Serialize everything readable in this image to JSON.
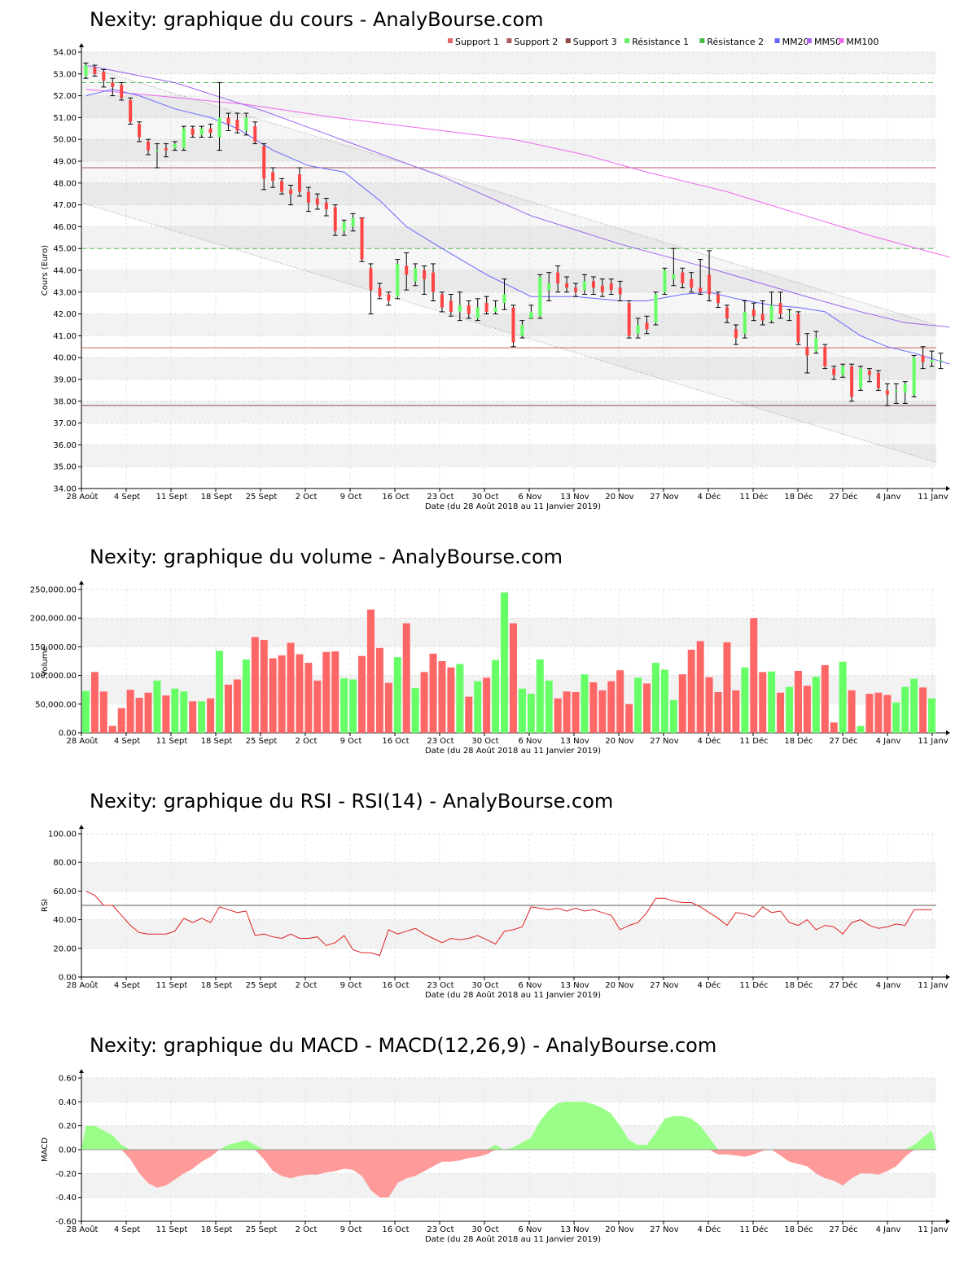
{
  "x_axis": {
    "tick_labels": [
      "28 Août",
      "4 Sept",
      "11 Sept",
      "18 Sept",
      "25 Sept",
      "2 Oct",
      "9 Oct",
      "16 Oct",
      "23 Oct",
      "30 Oct",
      "6 Nov",
      "13 Nov",
      "20 Nov",
      "27 Nov",
      "4 Déc",
      "11 Déc",
      "18 Déc",
      "27 Déc",
      "4 Janv",
      "11 Janv"
    ],
    "title": "Date (du 28 Août 2018 au 11 Janvier 2019)"
  },
  "colors": {
    "up": "#66ff66",
    "down": "#ff4444",
    "down_bar": "#ff6666",
    "grid_band": "#f2f2f2"
  },
  "chart_data": [
    {
      "type": "candlestick",
      "title": "Nexity: graphique du cours - AnalyBourse.com",
      "ylabel": "Cours (Euro)",
      "ylim": [
        34,
        54
      ],
      "ytick_labels": [
        "34.00",
        "35.00",
        "36.00",
        "37.00",
        "38.00",
        "39.00",
        "40.00",
        "41.00",
        "42.00",
        "43.00",
        "44.00",
        "45.00",
        "46.00",
        "47.00",
        "48.00",
        "49.00",
        "50.00",
        "51.00",
        "52.00",
        "53.00",
        "54.00"
      ],
      "legend": [
        {
          "label": "Support 1",
          "color": "#e06666"
        },
        {
          "label": "Support 2",
          "color": "#b05a5a"
        },
        {
          "label": "Support 3",
          "color": "#8a4a4a"
        },
        {
          "label": "Résistance 1",
          "color": "#66ee66"
        },
        {
          "label": "Résistance 2",
          "color": "#44bb44"
        },
        {
          "label": "MM20",
          "color": "#6666ff"
        },
        {
          "label": "MM50",
          "color": "#aa66ee"
        },
        {
          "label": "MM100",
          "color": "#ee66ee"
        }
      ],
      "levels": {
        "support_1": 40.45,
        "support_2": 48.7,
        "support_3": 37.8,
        "resistance_1": 45.0,
        "resistance_2": 52.6
      },
      "channel": {
        "upper": [
          53.4,
          41.5
        ],
        "lower": [
          47.1,
          35.2
        ]
      },
      "candles": [
        [
          52.9,
          53.4,
          53.5,
          52.8
        ],
        [
          53.3,
          53.0,
          53.4,
          52.9
        ],
        [
          53.1,
          52.7,
          53.2,
          52.4
        ],
        [
          52.6,
          52.4,
          52.8,
          52.0
        ],
        [
          52.5,
          51.9,
          52.6,
          51.8
        ],
        [
          51.8,
          50.8,
          51.9,
          50.7
        ],
        [
          50.7,
          50.1,
          50.8,
          49.9
        ],
        [
          49.9,
          49.5,
          50.0,
          49.3
        ],
        [
          49.5,
          49.5,
          49.8,
          48.7
        ],
        [
          49.6,
          49.5,
          49.8,
          49.2
        ],
        [
          49.6,
          49.8,
          49.9,
          49.5
        ],
        [
          49.6,
          50.5,
          50.6,
          49.5
        ],
        [
          50.5,
          50.2,
          50.6,
          50.1
        ],
        [
          50.2,
          50.5,
          50.6,
          50.1
        ],
        [
          50.5,
          50.3,
          50.7,
          50.1
        ],
        [
          50.1,
          51.0,
          52.6,
          49.5
        ],
        [
          51.0,
          50.7,
          51.2,
          50.4
        ],
        [
          50.9,
          50.4,
          51.2,
          50.3
        ],
        [
          50.4,
          51.0,
          51.2,
          50.2
        ],
        [
          50.6,
          49.9,
          50.8,
          49.8
        ],
        [
          49.7,
          48.2,
          49.8,
          47.7
        ],
        [
          48.5,
          48.1,
          48.7,
          47.8
        ],
        [
          48.1,
          47.6,
          48.2,
          47.5
        ],
        [
          47.7,
          47.5,
          47.9,
          47.0
        ],
        [
          48.4,
          47.6,
          48.7,
          47.4
        ],
        [
          47.6,
          47.1,
          47.8,
          46.7
        ],
        [
          47.3,
          47.0,
          47.5,
          46.8
        ],
        [
          47.1,
          46.8,
          47.3,
          46.5
        ],
        [
          46.9,
          45.8,
          47.0,
          45.6
        ],
        [
          45.8,
          46.2,
          46.3,
          45.6
        ],
        [
          46.0,
          46.4,
          46.6,
          45.8
        ],
        [
          46.4,
          44.5,
          46.4,
          44.4
        ],
        [
          44.1,
          43.1,
          44.3,
          42.0
        ],
        [
          43.2,
          42.8,
          43.4,
          42.7
        ],
        [
          42.9,
          42.6,
          43.0,
          42.4
        ],
        [
          42.8,
          44.3,
          44.5,
          42.7
        ],
        [
          44.2,
          43.8,
          44.8,
          43.1
        ],
        [
          43.5,
          44.1,
          44.3,
          43.3
        ],
        [
          44.0,
          43.6,
          44.2,
          42.9
        ],
        [
          43.9,
          43.0,
          44.3,
          42.6
        ],
        [
          42.9,
          42.3,
          43.0,
          42.1
        ],
        [
          42.6,
          42.1,
          42.9,
          41.9
        ],
        [
          42.1,
          42.4,
          43.0,
          41.7
        ],
        [
          42.4,
          42.0,
          42.6,
          41.8
        ],
        [
          41.8,
          42.3,
          42.7,
          41.7
        ],
        [
          42.5,
          42.1,
          42.8,
          42.0
        ],
        [
          42.1,
          42.3,
          42.6,
          42.0
        ],
        [
          42.5,
          42.9,
          43.6,
          42.2
        ],
        [
          42.3,
          40.7,
          42.4,
          40.5
        ],
        [
          41.0,
          41.5,
          41.7,
          40.9
        ],
        [
          41.8,
          42.1,
          42.4,
          41.8
        ],
        [
          41.9,
          43.7,
          43.8,
          41.8
        ],
        [
          43.1,
          43.4,
          43.9,
          42.6
        ],
        [
          43.9,
          43.4,
          44.2,
          43.0
        ],
        [
          43.4,
          43.2,
          43.7,
          43.0
        ],
        [
          43.2,
          43.0,
          43.4,
          42.8
        ],
        [
          43.1,
          43.5,
          43.8,
          42.9
        ],
        [
          43.5,
          43.2,
          43.7,
          42.9
        ],
        [
          43.3,
          43.0,
          43.6,
          42.8
        ],
        [
          43.4,
          43.1,
          43.6,
          42.9
        ],
        [
          43.2,
          42.9,
          43.5,
          42.6
        ],
        [
          42.5,
          41.0,
          42.6,
          40.9
        ],
        [
          41.1,
          41.5,
          41.8,
          40.9
        ],
        [
          41.6,
          41.3,
          41.9,
          41.1
        ],
        [
          41.6,
          42.9,
          43.0,
          41.5
        ],
        [
          43.0,
          44.0,
          44.1,
          42.9
        ],
        [
          43.6,
          43.8,
          45.0,
          43.3
        ],
        [
          43.9,
          43.4,
          44.1,
          43.2
        ],
        [
          43.6,
          43.2,
          43.9,
          43.0
        ],
        [
          43.2,
          43.0,
          44.5,
          42.9
        ],
        [
          43.8,
          42.9,
          44.9,
          42.6
        ],
        [
          42.9,
          42.5,
          43.0,
          42.3
        ],
        [
          42.3,
          41.8,
          42.4,
          41.6
        ],
        [
          41.3,
          40.9,
          41.5,
          40.6
        ],
        [
          41.1,
          42.1,
          42.6,
          40.9
        ],
        [
          42.2,
          41.9,
          42.5,
          41.7
        ],
        [
          42.0,
          41.7,
          42.6,
          41.5
        ],
        [
          41.7,
          42.4,
          43.0,
          41.6
        ],
        [
          42.5,
          42.0,
          43.0,
          41.8
        ],
        [
          42.0,
          42.0,
          42.2,
          41.7
        ],
        [
          42.0,
          40.7,
          42.1,
          40.6
        ],
        [
          40.5,
          40.1,
          41.1,
          39.3
        ],
        [
          40.3,
          40.9,
          41.2,
          40.2
        ],
        [
          40.5,
          39.6,
          40.6,
          39.5
        ],
        [
          39.5,
          39.2,
          39.6,
          39.0
        ],
        [
          39.2,
          39.6,
          39.7,
          39.1
        ],
        [
          39.6,
          38.2,
          39.7,
          38.0
        ],
        [
          38.6,
          39.5,
          39.6,
          38.5
        ],
        [
          39.4,
          39.2,
          39.5,
          38.9
        ],
        [
          39.3,
          38.6,
          39.4,
          38.5
        ],
        [
          38.5,
          38.3,
          38.8,
          37.8
        ],
        [
          38.5,
          38.5,
          38.8,
          37.9
        ],
        [
          38.4,
          38.8,
          38.9,
          37.9
        ],
        [
          38.3,
          40.0,
          40.1,
          38.2
        ],
        [
          40.1,
          39.8,
          40.5,
          39.5
        ],
        [
          39.8,
          39.9,
          40.3,
          39.6
        ],
        [
          39.9,
          39.9,
          40.2,
          39.5
        ]
      ],
      "mm20": [
        [
          0,
          52.0
        ],
        [
          3,
          52.3
        ],
        [
          6,
          52.0
        ],
        [
          10,
          51.4
        ],
        [
          14,
          51.0
        ],
        [
          17,
          50.5
        ],
        [
          21,
          49.5
        ],
        [
          25,
          48.8
        ],
        [
          29,
          48.5
        ],
        [
          33,
          47.2
        ],
        [
          36,
          46.0
        ],
        [
          40,
          45.0
        ],
        [
          45,
          43.8
        ],
        [
          50,
          42.8
        ],
        [
          55,
          42.8
        ],
        [
          60,
          42.6
        ],
        [
          63,
          42.6
        ],
        [
          67,
          42.9
        ],
        [
          70,
          43.0
        ],
        [
          73,
          42.7
        ],
        [
          77,
          42.4
        ],
        [
          80,
          42.3
        ],
        [
          83,
          42.1
        ],
        [
          87,
          41.0
        ],
        [
          90,
          40.5
        ],
        [
          93,
          40.2
        ],
        [
          97,
          39.7
        ]
      ],
      "mm50": [
        [
          0,
          53.4
        ],
        [
          10,
          52.6
        ],
        [
          20,
          51.3
        ],
        [
          30,
          49.8
        ],
        [
          40,
          48.3
        ],
        [
          50,
          46.5
        ],
        [
          60,
          45.2
        ],
        [
          70,
          44.1
        ],
        [
          80,
          42.9
        ],
        [
          87,
          42.1
        ],
        [
          92,
          41.6
        ],
        [
          97,
          41.4
        ]
      ],
      "mm100": [
        [
          0,
          52.3
        ],
        [
          8,
          52.0
        ],
        [
          18,
          51.6
        ],
        [
          28,
          51.0
        ],
        [
          38,
          50.5
        ],
        [
          48,
          50.0
        ],
        [
          56,
          49.3
        ],
        [
          63,
          48.5
        ],
        [
          72,
          47.6
        ],
        [
          80,
          46.6
        ],
        [
          88,
          45.6
        ],
        [
          97,
          44.6
        ]
      ]
    },
    {
      "type": "bar",
      "title": "Nexity: graphique du volume - AnalyBourse.com",
      "ylabel": "Volume",
      "ylim": [
        0,
        250000
      ],
      "ytick_labels": [
        "0.00",
        "50,000.00",
        "100,000.00",
        "150,000.00",
        "200,000.00",
        "250,000.00"
      ],
      "values": [
        73000,
        106000,
        72000,
        12000,
        43000,
        75000,
        61000,
        70000,
        91000,
        65000,
        77000,
        72000,
        55000,
        55000,
        60000,
        143000,
        84000,
        93000,
        128000,
        167000,
        162000,
        130000,
        135000,
        157000,
        137000,
        122000,
        91000,
        141000,
        142000,
        95000,
        93000,
        134000,
        215000,
        148000,
        87000,
        132000,
        191000,
        78000,
        106000,
        138000,
        125000,
        114000,
        120000,
        63000,
        90000,
        96000,
        127000,
        245000,
        191000,
        77000,
        68000,
        128000,
        91000,
        60000,
        72000,
        71000,
        102000,
        88000,
        74000,
        90000,
        109000,
        50000,
        96000,
        86000,
        122000,
        110000,
        57000,
        102000,
        145000,
        160000,
        97000,
        71000,
        158000,
        74000,
        114000,
        200000,
        106000,
        107000,
        70000,
        80000,
        108000,
        82000,
        98000,
        118000,
        18000,
        124000,
        74000,
        12000,
        68000,
        70000,
        66000,
        53000,
        80000,
        94000,
        79000,
        60000
      ]
    },
    {
      "type": "line",
      "title": "Nexity: graphique du RSI - RSI(14) - AnalyBourse.com",
      "ylabel": "RSI",
      "ylim": [
        0,
        100
      ],
      "ytick_labels": [
        "0.00",
        "20.00",
        "40.00",
        "60.00",
        "80.00",
        "100.00"
      ],
      "reference_line": 50,
      "values": [
        60,
        57,
        50,
        50,
        43,
        36,
        31,
        30,
        30,
        30,
        32,
        41,
        38,
        41,
        38,
        49,
        47,
        45,
        46,
        29,
        30,
        28,
        27,
        30,
        27,
        27,
        28,
        22,
        24,
        29,
        19,
        17,
        17,
        15,
        33,
        30,
        32,
        34,
        30,
        27,
        24,
        27,
        26,
        27,
        29,
        26,
        23,
        32,
        33,
        35,
        49,
        48,
        47,
        48,
        46,
        48,
        46,
        47,
        45,
        43,
        33,
        36,
        38,
        45,
        55,
        55,
        53,
        52,
        52,
        49,
        45,
        41,
        36,
        45,
        44,
        42,
        49,
        45,
        46,
        38,
        36,
        40,
        33,
        36,
        35,
        30,
        38,
        40,
        36,
        34,
        35,
        37,
        36,
        47,
        47,
        47
      ]
    },
    {
      "type": "area",
      "title": "Nexity: graphique du MACD - MACD(12,26,9) - AnalyBourse.com",
      "ylabel": "MACD",
      "ylim": [
        -0.6,
        0.6
      ],
      "ytick_labels": [
        "-0.60",
        "-0.40",
        "-0.20",
        "0.00",
        "0.20",
        "0.40",
        "0.60"
      ],
      "values": [
        0.2,
        0.2,
        0.16,
        0.12,
        0.04,
        -0.08,
        -0.2,
        -0.28,
        -0.32,
        -0.3,
        -0.25,
        -0.2,
        -0.16,
        -0.1,
        -0.06,
        0.0,
        0.04,
        0.06,
        0.08,
        0.04,
        -0.08,
        -0.18,
        -0.22,
        -0.24,
        -0.22,
        -0.21,
        -0.21,
        -0.19,
        -0.18,
        -0.16,
        -0.17,
        -0.22,
        -0.34,
        -0.4,
        -0.4,
        -0.28,
        -0.24,
        -0.22,
        -0.18,
        -0.14,
        -0.1,
        -0.1,
        -0.09,
        -0.07,
        -0.06,
        -0.04,
        0.04,
        0.0,
        0.02,
        0.06,
        0.1,
        0.24,
        0.33,
        0.39,
        0.4,
        0.4,
        0.4,
        0.38,
        0.35,
        0.3,
        0.2,
        0.08,
        0.04,
        0.04,
        0.14,
        0.26,
        0.28,
        0.28,
        0.26,
        0.2,
        0.1,
        -0.04,
        -0.04,
        -0.05,
        -0.06,
        -0.04,
        -0.01,
        0.0,
        -0.05,
        -0.1,
        -0.12,
        -0.14,
        -0.2,
        -0.24,
        -0.26,
        -0.3,
        -0.24,
        -0.2,
        -0.2,
        -0.21,
        -0.18,
        -0.14,
        -0.06,
        0.04,
        0.1,
        0.16
      ]
    }
  ]
}
